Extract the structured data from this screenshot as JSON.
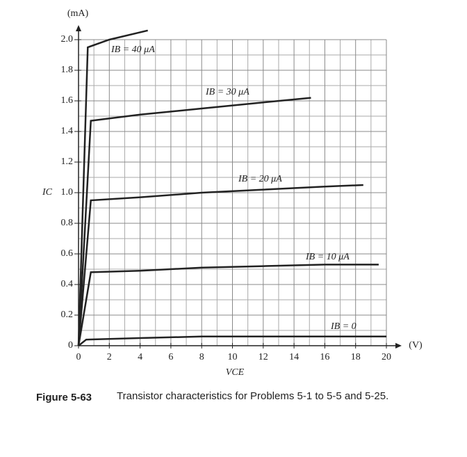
{
  "chart_data": {
    "type": "line",
    "y_unit": "(mA)",
    "y_label": "IC",
    "x_label": "VCE",
    "x_unit": "(V)",
    "caption_number": "Figure 5-63",
    "caption_text": "Transistor characteristics for Problems 5-1 to 5-5 and 5-25.",
    "xlim": [
      0,
      20
    ],
    "ylim": [
      0,
      2.0
    ],
    "xticks": [
      0,
      2,
      4,
      6,
      8,
      10,
      12,
      14,
      16,
      18,
      20
    ],
    "yticks": [
      0,
      0.2,
      0.4,
      0.6,
      0.8,
      {
        "value": 1,
        "label": "1.0"
      },
      1.2,
      1.4,
      1.6,
      1.8,
      {
        "value": 2,
        "label": "2.0"
      }
    ],
    "grid": true,
    "series": [
      {
        "name": "IB = 40 μA",
        "color": "#222",
        "x": [
          0,
          0.6,
          2,
          4.5
        ],
        "values": [
          0,
          1.95,
          2.0,
          2.06
        ]
      },
      {
        "name": "IB = 30 μA",
        "color": "#222",
        "x": [
          0,
          0.8,
          4,
          8,
          12,
          15.1
        ],
        "values": [
          0,
          1.47,
          1.51,
          1.55,
          1.59,
          1.62
        ]
      },
      {
        "name": "IB = 20 μA",
        "color": "#222",
        "x": [
          0,
          0.8,
          4,
          8,
          12,
          16,
          18.5
        ],
        "values": [
          0,
          0.95,
          0.97,
          1.0,
          1.02,
          1.04,
          1.05
        ]
      },
      {
        "name": "IB = 10 μA",
        "color": "#222",
        "x": [
          0,
          0.8,
          4,
          8,
          12,
          16,
          19.5
        ],
        "values": [
          0,
          0.48,
          0.49,
          0.51,
          0.52,
          0.53,
          0.53
        ]
      },
      {
        "name": "IB = 0",
        "color": "#222",
        "x": [
          0,
          0.5,
          4,
          8,
          12,
          16,
          20
        ],
        "values": [
          0,
          0.04,
          0.05,
          0.06,
          0.06,
          0.06,
          0.06
        ]
      }
    ]
  }
}
